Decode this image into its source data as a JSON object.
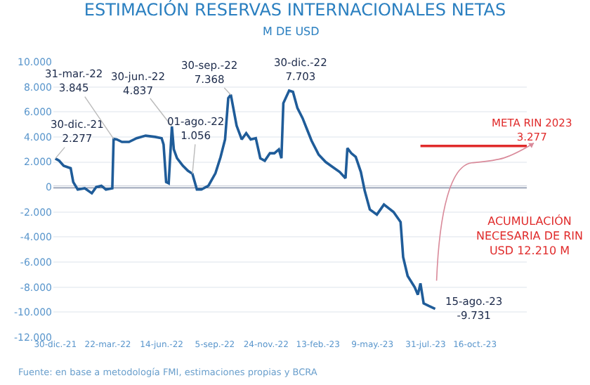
{
  "chart_data": {
    "type": "line",
    "title": "ESTIMACIÓN RESERVAS INTERNACIONALES NETAS",
    "subtitle": "M DE USD",
    "series": [
      {
        "color": "#1f5c99",
        "x": [
          "2021-12-30",
          "2022-01-05",
          "2022-01-12",
          "2022-01-23",
          "2022-01-27",
          "2022-02-03",
          "2022-02-14",
          "2022-02-25",
          "2022-03-04",
          "2022-03-12",
          "2022-03-19",
          "2022-03-29",
          "2022-03-31",
          "2022-04-05",
          "2022-04-13",
          "2022-04-24",
          "2022-05-06",
          "2022-05-20",
          "2022-06-04",
          "2022-06-14",
          "2022-06-17",
          "2022-06-21",
          "2022-06-25",
          "2022-06-30",
          "2022-07-03",
          "2022-07-08",
          "2022-07-17",
          "2022-07-25",
          "2022-08-01",
          "2022-08-08",
          "2022-08-15",
          "2022-08-26",
          "2022-09-06",
          "2022-09-14",
          "2022-09-21",
          "2022-09-26",
          "2022-09-30",
          "2022-10-09",
          "2022-10-17",
          "2022-10-24",
          "2022-10-31",
          "2022-11-08",
          "2022-11-15",
          "2022-11-22",
          "2022-11-30",
          "2022-12-07",
          "2022-12-14",
          "2022-12-18",
          "2022-12-21",
          "2022-12-30",
          "2023-01-05",
          "2023-01-12",
          "2023-01-20",
          "2023-01-27",
          "2023-02-03",
          "2023-02-14",
          "2023-02-25",
          "2023-03-08",
          "2023-03-19",
          "2023-03-28",
          "2023-03-31",
          "2023-04-06",
          "2023-04-13",
          "2023-04-21",
          "2023-04-27",
          "2023-05-05",
          "2023-05-16",
          "2023-05-27",
          "2023-06-11",
          "2023-06-22",
          "2023-06-26",
          "2023-07-03",
          "2023-07-14",
          "2023-07-19",
          "2023-07-23",
          "2023-07-28",
          "2023-08-05",
          "2023-08-15"
        ],
        "values": [
          2277,
          2100,
          1700,
          1500,
          400,
          -200,
          -100,
          -500,
          0,
          100,
          -200,
          -100,
          3845,
          3800,
          3600,
          3600,
          3900,
          4100,
          4000,
          3900,
          3400,
          400,
          300,
          4837,
          3000,
          2300,
          1700,
          1300,
          1056,
          -200,
          -200,
          100,
          1100,
          2400,
          3800,
          7100,
          7368,
          4900,
          3800,
          4300,
          3800,
          3900,
          2300,
          2100,
          2700,
          2700,
          3000,
          2300,
          6700,
          7703,
          7600,
          6300,
          5500,
          4600,
          3700,
          2600,
          2000,
          1600,
          1200,
          700,
          3100,
          2700,
          2400,
          1200,
          -300,
          -1800,
          -2200,
          -1400,
          -2000,
          -2800,
          -5600,
          -7100,
          -8000,
          -8600,
          -7700,
          -9300,
          -9500,
          -9731
        ]
      },
      {
        "color": "#e02b2b",
        "x": [
          "2023-07-23",
          "2024-01-05"
        ],
        "values": [
          3277,
          3277
        ]
      }
    ],
    "xlim": [
      "2021-12-27",
      "2024-01-05"
    ],
    "xticks": [
      {
        "value": "2021-12-30",
        "label": "30-dic.-21"
      },
      {
        "value": "2022-03-22",
        "label": "22-mar.-22"
      },
      {
        "value": "2022-06-14",
        "label": "14-jun.-22"
      },
      {
        "value": "2022-09-05",
        "label": "5-sep.-22"
      },
      {
        "value": "2022-11-24",
        "label": "24-nov.-22"
      },
      {
        "value": "2023-02-13",
        "label": "13-feb.-23"
      },
      {
        "value": "2023-05-09",
        "label": "9-may.-23"
      },
      {
        "value": "2023-07-31",
        "label": "31-jul.-23"
      },
      {
        "value": "2023-10-16",
        "label": "16-oct.-23"
      }
    ],
    "ylim": [
      -12000,
      10000
    ],
    "yticks": [
      {
        "value": -12000,
        "label": "-12.000"
      },
      {
        "value": -10000,
        "label": "-10.000"
      },
      {
        "value": -8000,
        "label": "-8.000"
      },
      {
        "value": -6000,
        "label": "-6.000"
      },
      {
        "value": -4000,
        "label": "-4.000"
      },
      {
        "value": -2000,
        "label": "-2.000"
      },
      0,
      {
        "value": 2000,
        "label": "2.000"
      },
      {
        "value": 4000,
        "label": "4.000"
      },
      {
        "value": 6000,
        "label": "6.000"
      },
      {
        "value": 8000,
        "label": "8.000"
      },
      {
        "value": 10000,
        "label": "10.000"
      }
    ],
    "grid": "y",
    "ref_lines": [
      {
        "axis": "y",
        "value": 0,
        "color": "#2c3e66"
      }
    ],
    "annotations": [
      {
        "text": "30-dic.-21\n2.277",
        "x": "2021-12-30",
        "y": 2277
      },
      {
        "text": "31-mar.-22\n3.845",
        "x": "2022-03-31",
        "y": 3845
      },
      {
        "text": "30-jun.-22\n4.837",
        "x": "2022-06-30",
        "y": 4837
      },
      {
        "text": "01-ago.-22\n1.056",
        "x": "2022-08-01",
        "y": 1056
      },
      {
        "text": "30-sep.-22\n7.368",
        "x": "2022-09-30",
        "y": 7368
      },
      {
        "text": "30-dic.-22\n7.703",
        "x": "2022-12-30",
        "y": 7703
      },
      {
        "text": "15-ago.-23\n-9.731",
        "x": "2023-08-15",
        "y": -9731
      },
      {
        "text": "META RIN 2023\n3.277",
        "x": "2024-01-05",
        "y": 3277
      },
      "ACUMULACIÓN\nNECESARIA DE RIN\nUSD 12.210 M",
      "Fuente: en base a metodología FMI, estimaciones propias y BCRA"
    ]
  }
}
